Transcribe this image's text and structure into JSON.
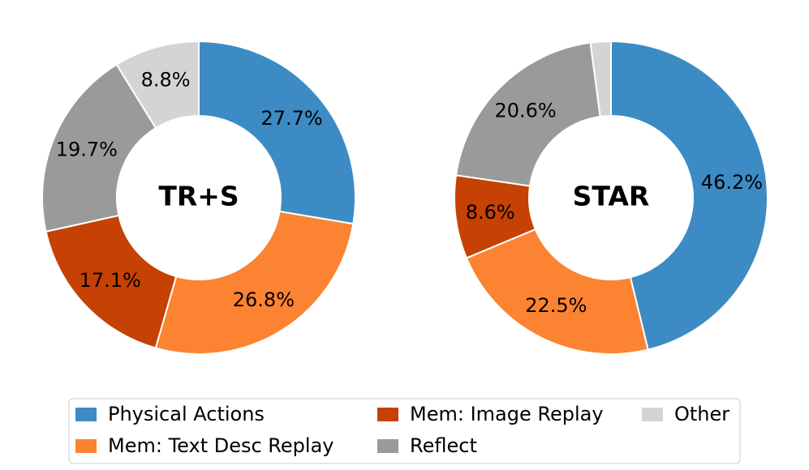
{
  "chart_data": [
    {
      "type": "donut",
      "title": "TR+S",
      "categories": [
        "Physical Actions",
        "Mem: Text Desc Replay",
        "Mem: Image Replay",
        "Reflect",
        "Other"
      ],
      "colors": [
        "#3d8bc4",
        "#fb8331",
        "#c64104",
        "#9a9a9a",
        "#d4d4d4"
      ],
      "values": [
        27.7,
        26.8,
        17.1,
        19.7,
        8.8
      ],
      "value_labels": [
        "27.7%",
        "26.8%",
        "17.1%",
        "19.7%",
        "8.8%"
      ]
    },
    {
      "type": "donut",
      "title": "STAR",
      "categories": [
        "Physical Actions",
        "Mem: Text Desc Replay",
        "Mem: Image Replay",
        "Reflect",
        "Other"
      ],
      "colors": [
        "#3d8bc4",
        "#fb8331",
        "#c64104",
        "#9a9a9a",
        "#d4d4d4"
      ],
      "values": [
        46.2,
        22.5,
        8.6,
        20.6,
        2.1
      ],
      "value_labels": [
        "46.2%",
        "22.5%",
        "8.6%",
        "20.6%",
        null
      ]
    }
  ]
}
